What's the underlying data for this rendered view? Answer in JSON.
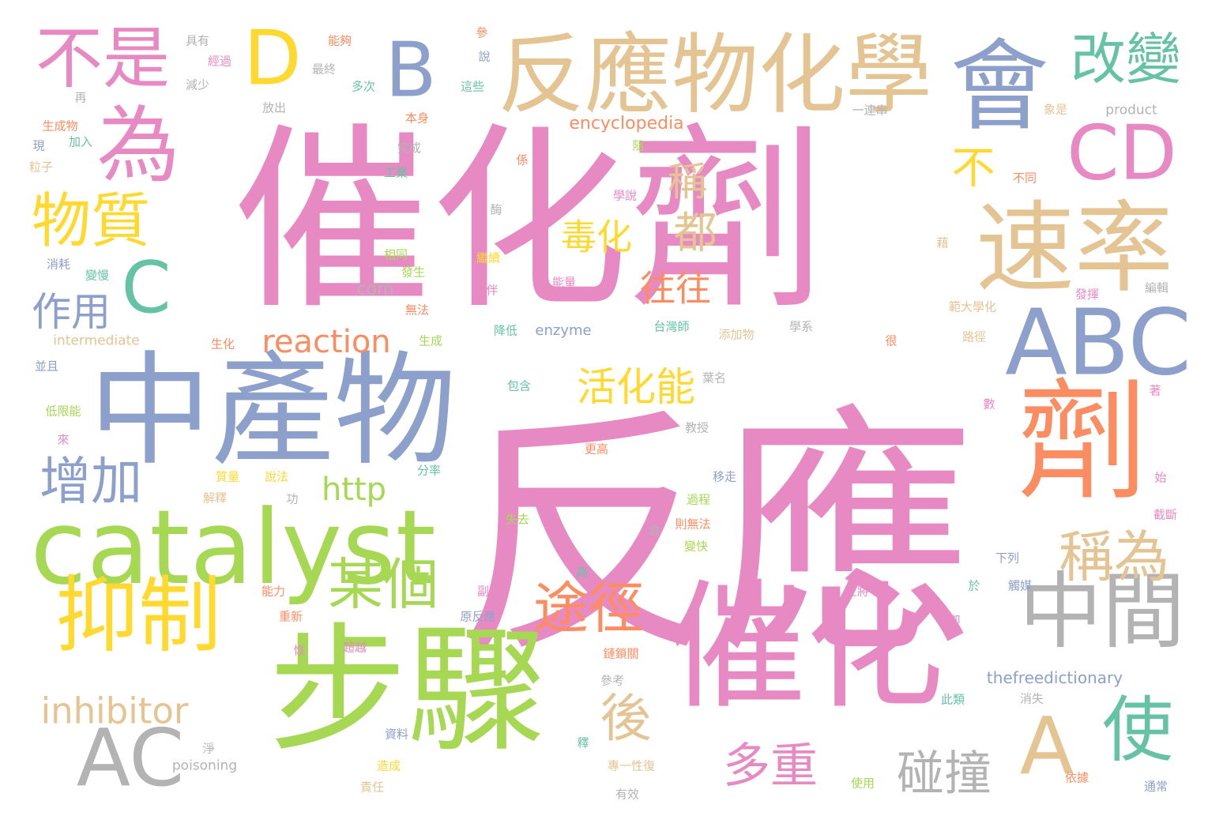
{
  "palette": {
    "pink": "#e78ac3",
    "green": "#a6d854",
    "blue": "#8da0cb",
    "orange": "#fc8d62",
    "tan": "#e5c494",
    "teal": "#66c2a5",
    "yellow": "#ffd92f",
    "gray": "#b3b3b3"
  },
  "words": [
    {
      "text": "反應",
      "color": "pink"
    },
    {
      "text": "催化劑",
      "color": "pink"
    },
    {
      "text": "中產物",
      "color": "blue"
    },
    {
      "text": "步驟",
      "color": "green"
    },
    {
      "text": "催化",
      "color": "pink"
    },
    {
      "text": "catalyst",
      "color": "green"
    },
    {
      "text": "反應物化學",
      "color": "tan"
    },
    {
      "text": "劑",
      "color": "orange"
    },
    {
      "text": "會",
      "color": "blue"
    },
    {
      "text": "速率",
      "color": "tan"
    },
    {
      "text": "ABC",
      "color": "blue"
    },
    {
      "text": "中間",
      "color": "gray"
    },
    {
      "text": "抑制",
      "color": "yellow"
    },
    {
      "text": "為",
      "color": "pink"
    },
    {
      "text": "不是",
      "color": "pink"
    },
    {
      "text": "D",
      "color": "yellow"
    },
    {
      "text": "B",
      "color": "blue"
    },
    {
      "text": "改變",
      "color": "teal"
    },
    {
      "text": "CD",
      "color": "pink"
    },
    {
      "text": "物質",
      "color": "yellow"
    },
    {
      "text": "C",
      "color": "teal"
    },
    {
      "text": "AC",
      "color": "gray"
    },
    {
      "text": "A",
      "color": "tan"
    },
    {
      "text": "使",
      "color": "teal"
    },
    {
      "text": "增加",
      "color": "blue"
    },
    {
      "text": "作用",
      "color": "blue"
    },
    {
      "text": "某個",
      "color": "green"
    },
    {
      "text": "途徑",
      "color": "orange"
    },
    {
      "text": "稱為",
      "color": "tan"
    },
    {
      "text": "碰撞",
      "color": "gray"
    },
    {
      "text": "多重",
      "color": "pink"
    },
    {
      "text": "後",
      "color": "tan"
    },
    {
      "text": "inhibitor",
      "color": "tan"
    },
    {
      "text": "reaction",
      "color": "orange"
    },
    {
      "text": "http",
      "color": "green"
    },
    {
      "text": "活化能",
      "color": "yellow"
    },
    {
      "text": "毒化",
      "color": "yellow"
    },
    {
      "text": "往往",
      "color": "orange"
    },
    {
      "text": "都",
      "color": "tan"
    },
    {
      "text": "稱",
      "color": "tan"
    },
    {
      "text": "不",
      "color": "yellow"
    },
    {
      "text": "encyclopedia",
      "color": "orange"
    },
    {
      "text": "thefreedictionary",
      "color": "blue"
    },
    {
      "text": "com",
      "color": "gray"
    },
    {
      "text": "enzyme",
      "color": "blue"
    },
    {
      "text": "intermediate",
      "color": "tan"
    },
    {
      "text": "poisoning",
      "color": "gray"
    },
    {
      "text": "product",
      "color": "gray"
    },
    {
      "text": "具有",
      "color": "gray"
    },
    {
      "text": "能夠",
      "color": "orange"
    },
    {
      "text": "參",
      "color": "orange"
    },
    {
      "text": "說",
      "color": "blue"
    },
    {
      "text": "經過",
      "color": "pink"
    },
    {
      "text": "最終",
      "color": "gray"
    },
    {
      "text": "減少",
      "color": "gray"
    },
    {
      "text": "多次",
      "color": "teal"
    },
    {
      "text": "這些",
      "color": "teal"
    },
    {
      "text": "再",
      "color": "gray"
    },
    {
      "text": "放出",
      "color": "gray"
    },
    {
      "text": "本身",
      "color": "orange"
    },
    {
      "text": "一連串",
      "color": "gray"
    },
    {
      "text": "象是",
      "color": "tan"
    },
    {
      "text": "生成物",
      "color": "orange"
    },
    {
      "text": "現",
      "color": "blue"
    },
    {
      "text": "加入",
      "color": "teal"
    },
    {
      "text": "完成",
      "color": "gray"
    },
    {
      "text": "粒子",
      "color": "tan"
    },
    {
      "text": "隨",
      "color": "green"
    },
    {
      "text": "係",
      "color": "orange"
    },
    {
      "text": "工業",
      "color": "teal"
    },
    {
      "text": "不同",
      "color": "orange"
    },
    {
      "text": "學說",
      "color": "pink"
    },
    {
      "text": "酶",
      "color": "gray"
    },
    {
      "text": "藉",
      "color": "tan"
    },
    {
      "text": "相同",
      "color": "green"
    },
    {
      "text": "繼續",
      "color": "yellow"
    },
    {
      "text": "消耗",
      "color": "blue"
    },
    {
      "text": "變慢",
      "color": "teal"
    },
    {
      "text": "發生",
      "color": "green"
    },
    {
      "text": "能量",
      "color": "pink"
    },
    {
      "text": "伴",
      "color": "pink"
    },
    {
      "text": "發揮",
      "color": "pink"
    },
    {
      "text": "編輯",
      "color": "gray"
    },
    {
      "text": "無法",
      "color": "orange"
    },
    {
      "text": "範大學化",
      "color": "tan"
    },
    {
      "text": "降低",
      "color": "teal"
    },
    {
      "text": "台灣師",
      "color": "teal"
    },
    {
      "text": "添加物",
      "color": "tan"
    },
    {
      "text": "學系",
      "color": "gray"
    },
    {
      "text": "生化",
      "color": "orange"
    },
    {
      "text": "生成",
      "color": "green"
    },
    {
      "text": "很",
      "color": "orange"
    },
    {
      "text": "路徑",
      "color": "tan"
    },
    {
      "text": "並且",
      "color": "blue"
    },
    {
      "text": "包含",
      "color": "teal"
    },
    {
      "text": "葉名",
      "color": "gray"
    },
    {
      "text": "著",
      "color": "pink"
    },
    {
      "text": "低限能",
      "color": "green"
    },
    {
      "text": "數",
      "color": "pink"
    },
    {
      "text": "教授",
      "color": "gray"
    },
    {
      "text": "來",
      "color": "pink"
    },
    {
      "text": "更高",
      "color": "orange"
    },
    {
      "text": "質量",
      "color": "yellow"
    },
    {
      "text": "說法",
      "color": "yellow"
    },
    {
      "text": "分率",
      "color": "teal"
    },
    {
      "text": "移走",
      "color": "blue"
    },
    {
      "text": "始",
      "color": "pink"
    },
    {
      "text": "解釋",
      "color": "tan"
    },
    {
      "text": "功",
      "color": "gray"
    },
    {
      "text": "過程",
      "color": "green"
    },
    {
      "text": "失去",
      "color": "green"
    },
    {
      "text": "則無法",
      "color": "orange"
    },
    {
      "text": "截斷",
      "color": "pink"
    },
    {
      "text": "倉",
      "color": "gray"
    },
    {
      "text": "變快",
      "color": "green"
    },
    {
      "text": "下列",
      "color": "blue"
    },
    {
      "text": "高",
      "color": "teal"
    },
    {
      "text": "能力",
      "color": "orange"
    },
    {
      "text": "副則",
      "color": "pink"
    },
    {
      "text": "上將",
      "color": "pink"
    },
    {
      "text": "於",
      "color": "teal"
    },
    {
      "text": "觸媒",
      "color": "blue"
    },
    {
      "text": "重新",
      "color": "orange"
    },
    {
      "text": "原反應",
      "color": "blue"
    },
    {
      "text": "卻",
      "color": "pink"
    },
    {
      "text": "恢",
      "color": "pink"
    },
    {
      "text": "超越",
      "color": "pink"
    },
    {
      "text": "鏈鎖關",
      "color": "orange"
    },
    {
      "text": "參考",
      "color": "gray"
    },
    {
      "text": "此類",
      "color": "teal"
    },
    {
      "text": "消失",
      "color": "gray"
    },
    {
      "text": "淨",
      "color": "gray"
    },
    {
      "text": "資料",
      "color": "blue"
    },
    {
      "text": "釋",
      "color": "teal"
    },
    {
      "text": "專一性復",
      "color": "tan"
    },
    {
      "text": "造成",
      "color": "yellow"
    },
    {
      "text": "使用",
      "color": "green"
    },
    {
      "text": "依據",
      "color": "orange"
    },
    {
      "text": "責任",
      "color": "tan"
    },
    {
      "text": "有效",
      "color": "gray"
    },
    {
      "text": "通常",
      "color": "blue"
    }
  ]
}
